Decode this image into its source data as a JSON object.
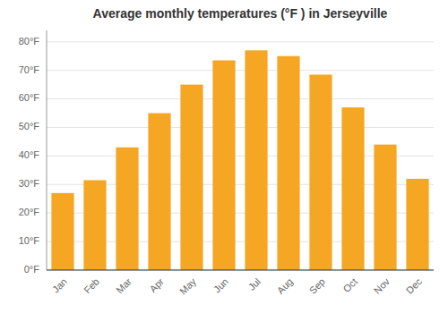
{
  "chart_data": {
    "type": "bar",
    "title": "Average monthly temperatures (°F ) in Jerseyville",
    "categories": [
      "Jan",
      "Feb",
      "Mar",
      "Apr",
      "May",
      "Jun",
      "Jul",
      "Aug",
      "Sep",
      "Oct",
      "Nov",
      "Dec"
    ],
    "values": [
      27,
      31.5,
      43,
      55,
      65,
      73.5,
      77,
      75,
      68.5,
      57,
      44,
      32
    ],
    "color": "#F5A623",
    "ylim": [
      0,
      84
    ],
    "yticks": [
      {
        "value": 0,
        "label": "0°F"
      },
      {
        "value": 10,
        "label": "10°F"
      },
      {
        "value": 20,
        "label": "20°F"
      },
      {
        "value": 30,
        "label": "30°F"
      },
      {
        "value": 40,
        "label": "40°F"
      },
      {
        "value": 50,
        "label": "50°F"
      },
      {
        "value": 60,
        "label": "60°F"
      },
      {
        "value": 70,
        "label": "70°F"
      },
      {
        "value": 80,
        "label": "80°F"
      }
    ],
    "grid": true
  }
}
